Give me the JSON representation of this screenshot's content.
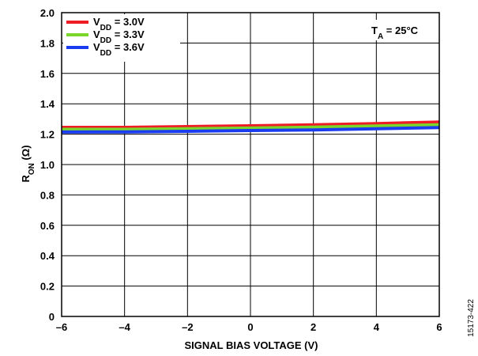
{
  "chart_data": {
    "type": "line",
    "xlabel": "SIGNAL BIAS VOLTAGE (V)",
    "ylabel": {
      "main": "R",
      "sub": "ON",
      "unit": " (Ω)"
    },
    "xlim": [
      -6,
      6
    ],
    "ylim": [
      0,
      2.0
    ],
    "xticks": [
      "–6",
      "–4",
      "–2",
      "0",
      "2",
      "4",
      "6"
    ],
    "xtick_values": [
      -6,
      -4,
      -2,
      0,
      2,
      4,
      6
    ],
    "yticks": [
      "0",
      "0.2",
      "0.4",
      "0.6",
      "0.8",
      "1.0",
      "1.2",
      "1.4",
      "1.6",
      "1.8",
      "2.0"
    ],
    "ytick_values": [
      0,
      0.2,
      0.4,
      0.6,
      0.8,
      1.0,
      1.2,
      1.4,
      1.6,
      1.8,
      2.0
    ],
    "grid": true,
    "legend_position": "top-left",
    "annotation": {
      "main": "T",
      "sub": "A",
      "rest": " = 25°C"
    },
    "figure_id": "15173-422",
    "series": [
      {
        "name": "VDD = 3.0V",
        "legend": {
          "main": "V",
          "sub": "DD",
          "rest": " = 3.0V"
        },
        "color": "#ee1c25",
        "x": [
          -6,
          -4,
          -2,
          0,
          2,
          4,
          6
        ],
        "y": [
          1.245,
          1.245,
          1.25,
          1.255,
          1.262,
          1.27,
          1.28
        ]
      },
      {
        "name": "VDD = 3.3V",
        "legend": {
          "main": "V",
          "sub": "DD",
          "rest": " = 3.3V"
        },
        "color": "#7bd62b",
        "x": [
          -6,
          -4,
          -2,
          0,
          2,
          4,
          6
        ],
        "y": [
          1.232,
          1.232,
          1.236,
          1.24,
          1.246,
          1.254,
          1.262
        ]
      },
      {
        "name": "VDD = 3.6V",
        "legend": {
          "main": "V",
          "sub": "DD",
          "rest": " = 3.6V"
        },
        "color": "#1a3cf0",
        "x": [
          -6,
          -4,
          -2,
          0,
          2,
          4,
          6
        ],
        "y": [
          1.214,
          1.215,
          1.219,
          1.224,
          1.228,
          1.236,
          1.244
        ]
      }
    ]
  }
}
